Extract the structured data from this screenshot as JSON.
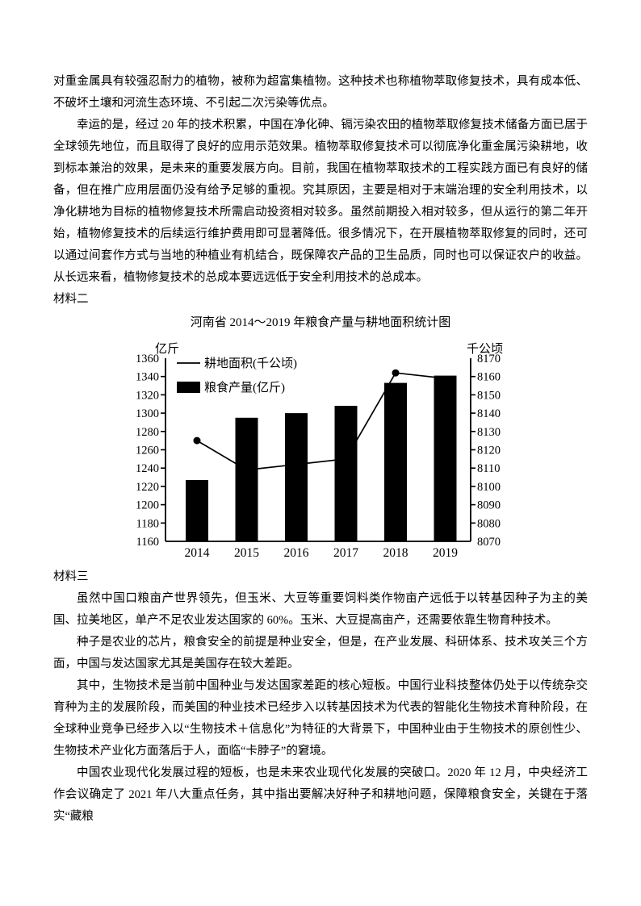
{
  "document": {
    "sections": [
      {
        "type": "paragraph",
        "indent": false,
        "text": "对重金属具有较强忍耐力的植物，被称为超富集植物。这种技术也称植物萃取修复技术，具有成本低、不破坏土壤和河流生态环境、不引起二次污染等优点。"
      },
      {
        "type": "paragraph",
        "indent": true,
        "text": "幸运的是，经过 20 年的技术积累，中国在净化砷、镉污染农田的植物萃取修复技术储备方面已居于全球领先地位，而且取得了良好的应用示范效果。植物萃取修复技术可以彻底净化重金属污染耕地，收到标本兼治的效果，是未来的重要发展方向。目前，我国在植物萃取技术的工程实践方面已有良好的储备，但在推广应用层面仍没有给予足够的重视。究其原因，主要是相对于末端治理的安全利用技术，以净化耕地为目标的植物修复技术所需启动投资相对较多。虽然前期投入相对较多，但从运行的第二年开始，植物修复技术的后续运行维护费用即可显著降低。很多情况下，在开展植物萃取修复的同时，还可以通过间套作方式与当地的种植业有机结合，既保障农产品的卫生品质，同时也可以保证农户的收益。从长远来看，植物修复技术的总成本要远远低于安全利用技术的总成本。"
      },
      {
        "type": "heading",
        "text": "材料二"
      },
      {
        "type": "chart"
      },
      {
        "type": "heading",
        "text": "材料三"
      },
      {
        "type": "paragraph",
        "indent": true,
        "text": "虽然中国口粮亩产世界领先，但玉米、大豆等重要饲料类作物亩产远低于以转基因种子为主的美国、拉美地区，单产不足农业发达国家的 60%。玉米、大豆提高亩产，还需要依靠生物育种技术。"
      },
      {
        "type": "paragraph",
        "indent": true,
        "text": "种子是农业的芯片，粮食安全的前提是种业安全，但是，在产业发展、科研体系、技术攻关三个方面，中国与发达国家尤其是美国存在较大差距。"
      },
      {
        "type": "paragraph",
        "indent": true,
        "text": "其中，生物技术是当前中国种业与发达国家差距的核心短板。中国行业科技整体仍处于以传统杂交育种为主的发展阶段，而美国的种业技术已经步入以转基因技术为代表的智能化生物技术育种阶段，在全球种业竞争已经步入以“生物技术＋信息化”为特征的大背景下，中国种业由于生物技术的原创性少、生物技术产业化方面落后于人，面临“卡脖子”的窘境。"
      },
      {
        "type": "paragraph",
        "indent": true,
        "text": "中国农业现代化发展过程的短板，也是未来农业现代化发展的突破口。2020 年 12 月，中央经济工作会议确定了 2021 年八大重点任务，其中指出要解决好种子和耕地问题，保障粮食安全，关键在于落实“藏粮"
      }
    ]
  },
  "chart_data": {
    "type": "bar+line",
    "title": "河南省 2014～2019 年粮食产量与耕地面积统计图",
    "categories": [
      "2014",
      "2015",
      "2016",
      "2017",
      "2018",
      "2019"
    ],
    "series": [
      {
        "name": "耕地面积(千公顷)",
        "type": "line",
        "axis": "right",
        "color": "#000000",
        "values": [
          8125,
          8109,
          8112,
          8115,
          8162,
          8159
        ],
        "marker_indices": [
          0,
          4
        ]
      },
      {
        "name": "粮食产量(亿斤)",
        "type": "bar",
        "axis": "left",
        "color": "#000000",
        "values": [
          1227,
          1295,
          1300,
          1308,
          1333,
          1341
        ]
      }
    ],
    "left_axis": {
      "label": "亿斤",
      "min": 1160,
      "max": 1360,
      "step": 20
    },
    "right_axis": {
      "label": "千公顷",
      "min": 8070,
      "max": 8170,
      "step": 10
    },
    "legend_position": "top-left",
    "grid": false,
    "colors": {
      "ink": "#000000",
      "background": "#ffffff"
    }
  }
}
